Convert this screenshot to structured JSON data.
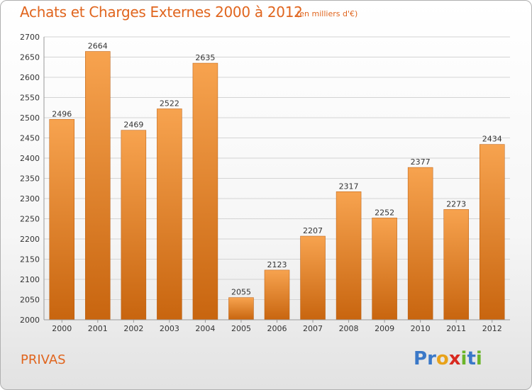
{
  "chart_data": {
    "type": "bar",
    "title": "Achats et Charges Externes 2000 à 2012",
    "subtitle": "(en milliers d'€)",
    "categories": [
      "2000",
      "2001",
      "2002",
      "2003",
      "2004",
      "2005",
      "2006",
      "2007",
      "2008",
      "2009",
      "2010",
      "2011",
      "2012"
    ],
    "values": [
      2496,
      2664,
      2469,
      2522,
      2635,
      2055,
      2123,
      2207,
      2317,
      2252,
      2377,
      2273,
      2434
    ],
    "ylim": [
      2000,
      2700
    ],
    "yticks": [
      2000,
      2050,
      2100,
      2150,
      2200,
      2250,
      2300,
      2350,
      2400,
      2450,
      2500,
      2550,
      2600,
      2650,
      2700
    ],
    "grid": true,
    "colors": {
      "bar_light": "#f7a04d",
      "bar_dark": "#c8650f",
      "text_accent": "#e0651e"
    }
  },
  "footer": {
    "city": "PRIVAS"
  },
  "logo": {
    "letters": [
      {
        "ch": "P",
        "color": "#3a78c8"
      },
      {
        "ch": "r",
        "color": "#3a78c8"
      },
      {
        "ch": "o",
        "color": "#e8a21a"
      },
      {
        "ch": "x",
        "color": "#d82a20"
      },
      {
        "ch": "i",
        "color": "#6bb52a"
      },
      {
        "ch": "t",
        "color": "#3a78c8"
      },
      {
        "ch": "i",
        "color": "#6bb52a"
      }
    ]
  }
}
